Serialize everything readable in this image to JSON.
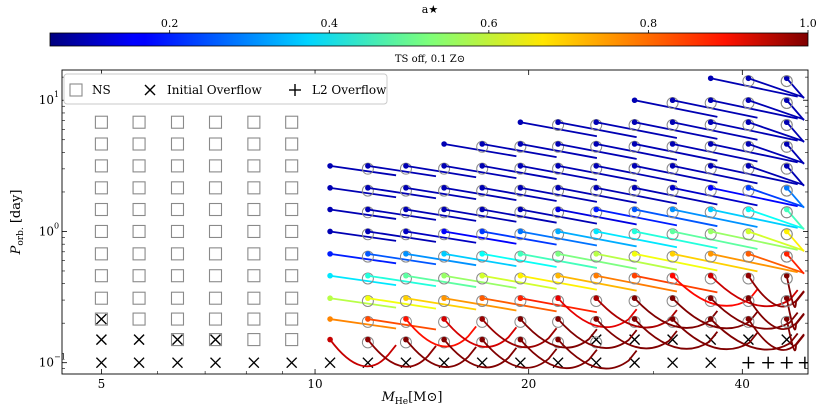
{
  "colorbar": {
    "label": "a★",
    "ticks": [
      "0.2",
      "0.4",
      "0.6",
      "0.8",
      "1.0"
    ],
    "tick_values": [
      0.2,
      0.4,
      0.6,
      0.8,
      1.0
    ],
    "range": [
      0.05,
      1.0
    ],
    "colormap": "jet"
  },
  "chart_data": {
    "type": "scatter",
    "title": "TS off, 0.1 Z⊙",
    "xlabel": "M_He [M⊙]",
    "ylabel": "P_orb. [day]",
    "xlog": true,
    "ylog": true,
    "xlim": [
      4.4,
      49.5
    ],
    "ylim": [
      0.082,
      17
    ],
    "x_ticks": [
      5,
      10,
      20,
      40
    ],
    "x_tick_labels": [
      "5",
      "10",
      "20",
      "40"
    ],
    "y_ticks": [
      0.1,
      1,
      10
    ],
    "y_tick_labels": [
      "10",
      "10",
      "10"
    ],
    "y_tick_exponents": [
      "−1",
      "0",
      "1"
    ],
    "grid": false,
    "legend_position": "top-left",
    "legend": [
      {
        "marker": "square",
        "label": "NS"
      },
      {
        "marker": "x",
        "label": "Initial Overflow"
      },
      {
        "marker": "plus",
        "label": "L2 Overflow"
      }
    ],
    "mass_grid": [
      5.0,
      5.65,
      6.4,
      7.24,
      8.2,
      9.27,
      10.5,
      11.87,
      13.43,
      15.2,
      17.2,
      19.47,
      22.0,
      24.9,
      28.2,
      31.9,
      36.1,
      40.8,
      46.2
    ],
    "period_grid": [
      0.1,
      0.15,
      0.215,
      0.31,
      0.46,
      0.675,
      1.0,
      1.47,
      2.15,
      3.16,
      4.64,
      6.8,
      10.0,
      14.7
    ],
    "ns_squares": {
      "x": [
        5.0,
        5.65,
        6.4,
        7.24,
        8.2,
        9.27
      ],
      "rows": [
        [
          0.215,
          0.31,
          0.46,
          0.675,
          1.0,
          1.47,
          2.15,
          3.16,
          4.64,
          6.8
        ],
        [
          0.215,
          0.31,
          0.46,
          0.675,
          1.0,
          1.47,
          2.15,
          3.16,
          4.64,
          6.8
        ],
        [
          0.15,
          0.215,
          0.31,
          0.46,
          0.675,
          1.0,
          1.47,
          2.15,
          3.16,
          4.64,
          6.8
        ],
        [
          0.15,
          0.215,
          0.31,
          0.46,
          0.675,
          1.0,
          1.47,
          2.15,
          3.16,
          4.64,
          6.8
        ],
        [
          0.15,
          0.215,
          0.31,
          0.46,
          0.675,
          1.0,
          1.47,
          2.15,
          3.16,
          4.64,
          6.8
        ],
        [
          0.15,
          0.215,
          0.31,
          0.46,
          0.675,
          1.0,
          1.47,
          2.15,
          3.16,
          4.64,
          6.8
        ]
      ]
    },
    "initial_overflow": {
      "period_0.1_masses": [
        5.0,
        5.65,
        6.4,
        7.24,
        8.2,
        9.27,
        10.5,
        11.87,
        13.43,
        15.2,
        17.2,
        19.47,
        22.0,
        24.9,
        28.2,
        31.9,
        36.1
      ],
      "period_0.15_masses": [
        5.0,
        5.65,
        6.4,
        7.24,
        24.9,
        28.2,
        31.9,
        36.1,
        40.8,
        46.2
      ],
      "period_0.215_masses": [
        5.0
      ]
    },
    "l2_overflow": {
      "period": 0.1,
      "masses": [
        40.8,
        43.5,
        46.2,
        49.0
      ]
    },
    "tracks": [
      {
        "x0": 9.27,
        "y0": 6.8,
        "x1": 10.5,
        "y1": 5.6,
        "a": 0.05
      },
      {
        "x0": 9.27,
        "y0": 4.64,
        "x1": 10.5,
        "y1": 3.75,
        "a": 0.05
      },
      {
        "x0": 9.27,
        "y0": 3.16,
        "x1": 10.5,
        "y1": 2.6,
        "a": 0.05
      },
      {
        "x0": 9.27,
        "y0": 2.15,
        "x1": 10.5,
        "y1": 1.8,
        "a": 0.06
      },
      {
        "x0": 9.27,
        "y0": 1.47,
        "x1": 10.5,
        "y1": 1.22,
        "a": 0.1
      },
      {
        "x0": 9.27,
        "y0": 1.0,
        "x1": 10.5,
        "y1": 0.86,
        "a": 0.17
      },
      {
        "x0": 9.27,
        "y0": 0.675,
        "x1": 10.5,
        "y1": 0.58,
        "a": 0.55
      },
      {
        "x0": 9.27,
        "y0": 0.46,
        "x1": 10.5,
        "y1": 0.4,
        "a": 0.93
      },
      {
        "x0": 9.27,
        "y0": 0.31,
        "x1": 10.5,
        "y1": 0.27,
        "a": 0.98
      },
      {
        "x0": 9.27,
        "y0": 0.215,
        "x1": 10.5,
        "y1": 0.19,
        "a": 1.0
      },
      {
        "x0": 9.27,
        "y0": 0.15,
        "x1": 10.5,
        "y1": 0.13,
        "a": 1.0
      },
      {
        "x0": 46.2,
        "y0": 14.7,
        "x1": 46.2,
        "y1": 6.3,
        "a": 0.05
      },
      {
        "x0": 40.8,
        "y0": 0.31,
        "x1": 46.2,
        "y1": 0.215,
        "a": 1.0
      }
    ]
  }
}
